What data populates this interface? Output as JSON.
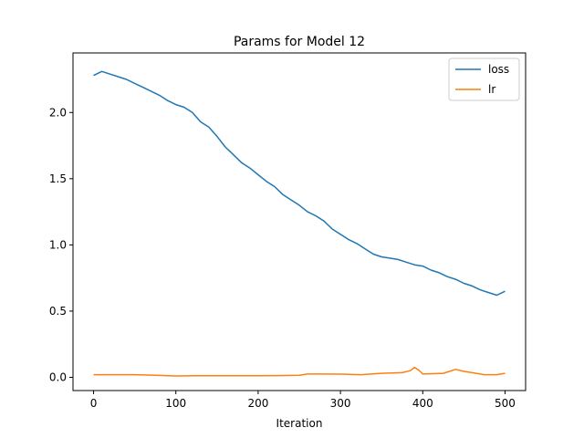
{
  "chart_data": {
    "type": "line",
    "title": "Params for Model 12",
    "xlabel": "Iteration",
    "ylabel": "",
    "xlim": [
      -25,
      525
    ],
    "ylim": [
      -0.1,
      2.45
    ],
    "x_ticks": [
      0,
      100,
      200,
      300,
      400,
      500
    ],
    "y_ticks": [
      0.0,
      0.5,
      1.0,
      1.5,
      2.0
    ],
    "x_tick_labels": [
      "0",
      "100",
      "200",
      "300",
      "400",
      "500"
    ],
    "y_tick_labels": [
      "0.0",
      "0.5",
      "1.0",
      "1.5",
      "2.0"
    ],
    "grid": false,
    "legend_position": "top-right",
    "series": [
      {
        "name": "loss",
        "color": "#1f77b4",
        "x": [
          0,
          10,
          20,
          30,
          40,
          50,
          60,
          70,
          80,
          90,
          100,
          110,
          120,
          130,
          140,
          150,
          160,
          170,
          180,
          190,
          200,
          210,
          220,
          230,
          240,
          250,
          260,
          270,
          280,
          290,
          300,
          310,
          320,
          330,
          340,
          350,
          360,
          370,
          380,
          390,
          400,
          410,
          420,
          430,
          440,
          450,
          460,
          470,
          480,
          490,
          500
        ],
        "y": [
          2.28,
          2.31,
          2.29,
          2.27,
          2.25,
          2.22,
          2.19,
          2.16,
          2.13,
          2.09,
          2.06,
          2.04,
          2.0,
          1.93,
          1.89,
          1.82,
          1.74,
          1.68,
          1.62,
          1.58,
          1.53,
          1.48,
          1.44,
          1.38,
          1.34,
          1.3,
          1.25,
          1.22,
          1.18,
          1.12,
          1.08,
          1.04,
          1.01,
          0.97,
          0.93,
          0.91,
          0.9,
          0.89,
          0.87,
          0.85,
          0.84,
          0.81,
          0.79,
          0.76,
          0.74,
          0.71,
          0.69,
          0.66,
          0.64,
          0.62,
          0.65
        ]
      },
      {
        "name": "lr",
        "color": "#ff7f0e",
        "x": [
          0,
          25,
          50,
          75,
          100,
          125,
          150,
          175,
          200,
          225,
          250,
          260,
          275,
          300,
          325,
          350,
          375,
          385,
          390,
          395,
          400,
          425,
          440,
          450,
          460,
          475,
          490,
          500
        ],
        "y": [
          0.02,
          0.02,
          0.02,
          0.015,
          0.01,
          0.012,
          0.012,
          0.012,
          0.012,
          0.013,
          0.015,
          0.025,
          0.025,
          0.024,
          0.02,
          0.03,
          0.035,
          0.05,
          0.075,
          0.055,
          0.025,
          0.03,
          0.06,
          0.045,
          0.035,
          0.02,
          0.02,
          0.03
        ]
      }
    ]
  }
}
